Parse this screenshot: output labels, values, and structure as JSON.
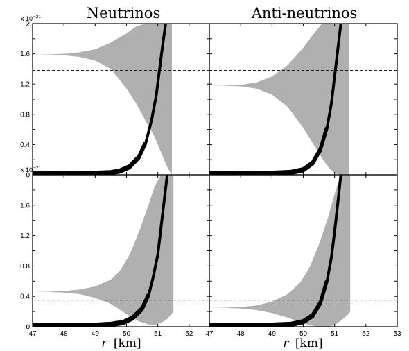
{
  "figure": {
    "column_titles": [
      "Neutrinos",
      "Anti-neutrinos"
    ],
    "xlabel": {
      "var": "r",
      "unit": "[km]"
    },
    "exponent": {
      "base": "x 10",
      "power": "−21"
    },
    "colors": {
      "envelope": "#b0b0b0",
      "black_curve": "#000000",
      "axes": "#000000",
      "dashed": "#000000"
    }
  },
  "chart_data": [
    {
      "type": "area",
      "panel": "top-left",
      "title": "Neutrinos",
      "xlim": [
        47,
        53
      ],
      "ylim": [
        0,
        2
      ],
      "y_exponent": -21,
      "yticks": [
        "0",
        "0.4",
        "0.8",
        "1.2",
        "1.6",
        "2"
      ],
      "xticks": [],
      "dashed_hline": 1.38,
      "envelope": {
        "x": [
          47,
          47.5,
          48,
          48.5,
          49,
          49.5,
          50,
          50.3,
          50.6,
          50.9,
          51.1,
          51.3,
          51.45
        ],
        "upper": [
          1.59,
          1.592,
          1.6,
          1.62,
          1.66,
          1.75,
          1.87,
          1.96,
          2.0,
          2.0,
          2.0,
          2.0,
          2.0
        ],
        "lower": [
          1.59,
          1.588,
          1.58,
          1.56,
          1.51,
          1.4,
          1.14,
          0.95,
          0.72,
          0.5,
          0.3,
          0.1,
          0.0
        ]
      },
      "black_curve": {
        "x": [
          47,
          49,
          49.5,
          49.8,
          50.1,
          50.4,
          50.6,
          50.8,
          50.95,
          51.05,
          51.15,
          51.25
        ],
        "y": [
          0,
          0.003,
          0.012,
          0.035,
          0.09,
          0.22,
          0.4,
          0.72,
          1.05,
          1.38,
          1.7,
          2.0
        ]
      }
    },
    {
      "type": "area",
      "panel": "top-right",
      "title": "Anti-neutrinos",
      "xlim": [
        47,
        53
      ],
      "ylim": [
        0,
        2
      ],
      "y_exponent": -21,
      "yticks": [],
      "xticks": [],
      "dashed_hline": 1.38,
      "envelope": {
        "x": [
          47,
          47.5,
          48,
          48.5,
          49,
          49.5,
          50,
          50.3,
          50.6,
          50.8,
          51.0,
          51.2,
          51.45
        ],
        "upper": [
          1.18,
          1.182,
          1.19,
          1.22,
          1.3,
          1.45,
          1.68,
          1.85,
          2.0,
          2.0,
          2.0,
          2.0,
          2.0
        ],
        "lower": [
          1.18,
          1.178,
          1.17,
          1.14,
          1.06,
          0.9,
          0.62,
          0.42,
          0.22,
          0.1,
          0.02,
          0.0,
          0.0
        ]
      },
      "black_curve": {
        "x": [
          47,
          49,
          49.6,
          50.0,
          50.3,
          50.55,
          50.75,
          50.9,
          51.0,
          51.1,
          51.2
        ],
        "y": [
          0,
          0.003,
          0.015,
          0.05,
          0.14,
          0.32,
          0.6,
          0.95,
          1.3,
          1.65,
          2.0
        ]
      }
    },
    {
      "type": "area",
      "panel": "bottom-left",
      "title": "",
      "xlim": [
        47,
        53
      ],
      "ylim": [
        0,
        2
      ],
      "y_exponent": -21,
      "yticks": [
        "0",
        "0.4",
        "0.8",
        "1.2",
        "1.6"
      ],
      "xticks": [
        "47",
        "48",
        "49",
        "50",
        "51",
        "52"
      ],
      "dashed_hline": 0.35,
      "envelope": {
        "x": [
          47,
          47.5,
          48,
          48.5,
          49,
          49.5,
          49.8,
          50.1,
          50.4,
          50.7,
          50.9,
          51.1,
          51.3,
          51.5
        ],
        "upper": [
          0.46,
          0.462,
          0.47,
          0.49,
          0.53,
          0.62,
          0.74,
          0.95,
          1.25,
          1.6,
          1.85,
          2.0,
          2.0,
          2.0
        ],
        "lower": [
          0.46,
          0.458,
          0.45,
          0.43,
          0.38,
          0.3,
          0.22,
          0.14,
          0.07,
          0.03,
          0.02,
          0.05,
          0.1,
          0.2
        ]
      },
      "black_curve": {
        "x": [
          47,
          49,
          49.5,
          49.9,
          50.2,
          50.5,
          50.7,
          50.85,
          51.0,
          51.1,
          51.2,
          51.3
        ],
        "y": [
          0,
          0.004,
          0.015,
          0.04,
          0.1,
          0.22,
          0.4,
          0.65,
          0.95,
          1.3,
          1.65,
          2.0
        ]
      }
    },
    {
      "type": "area",
      "panel": "bottom-right",
      "title": "",
      "xlim": [
        47,
        53
      ],
      "ylim": [
        0,
        2
      ],
      "y_exponent": -21,
      "yticks": [],
      "xticks": [
        "47",
        "48",
        "49",
        "50",
        "51",
        "52",
        "53"
      ],
      "dashed_hline": 0.35,
      "envelope": {
        "x": [
          47,
          47.5,
          48,
          48.5,
          49,
          49.5,
          49.9,
          50.2,
          50.5,
          50.8,
          51.0,
          51.2,
          51.4,
          51.5
        ],
        "upper": [
          0.25,
          0.252,
          0.26,
          0.28,
          0.33,
          0.43,
          0.58,
          0.78,
          1.08,
          1.45,
          1.75,
          2.0,
          2.0,
          2.0
        ],
        "lower": [
          0.25,
          0.248,
          0.24,
          0.22,
          0.18,
          0.12,
          0.06,
          0.02,
          0.0,
          0.0,
          0.02,
          0.08,
          0.15,
          0.2
        ]
      },
      "black_curve": {
        "x": [
          47,
          49,
          49.6,
          50.0,
          50.3,
          50.55,
          50.75,
          50.9,
          51.0,
          51.1,
          51.2
        ],
        "y": [
          0,
          0.004,
          0.015,
          0.05,
          0.13,
          0.3,
          0.58,
          0.92,
          1.25,
          1.62,
          2.0
        ]
      }
    }
  ]
}
